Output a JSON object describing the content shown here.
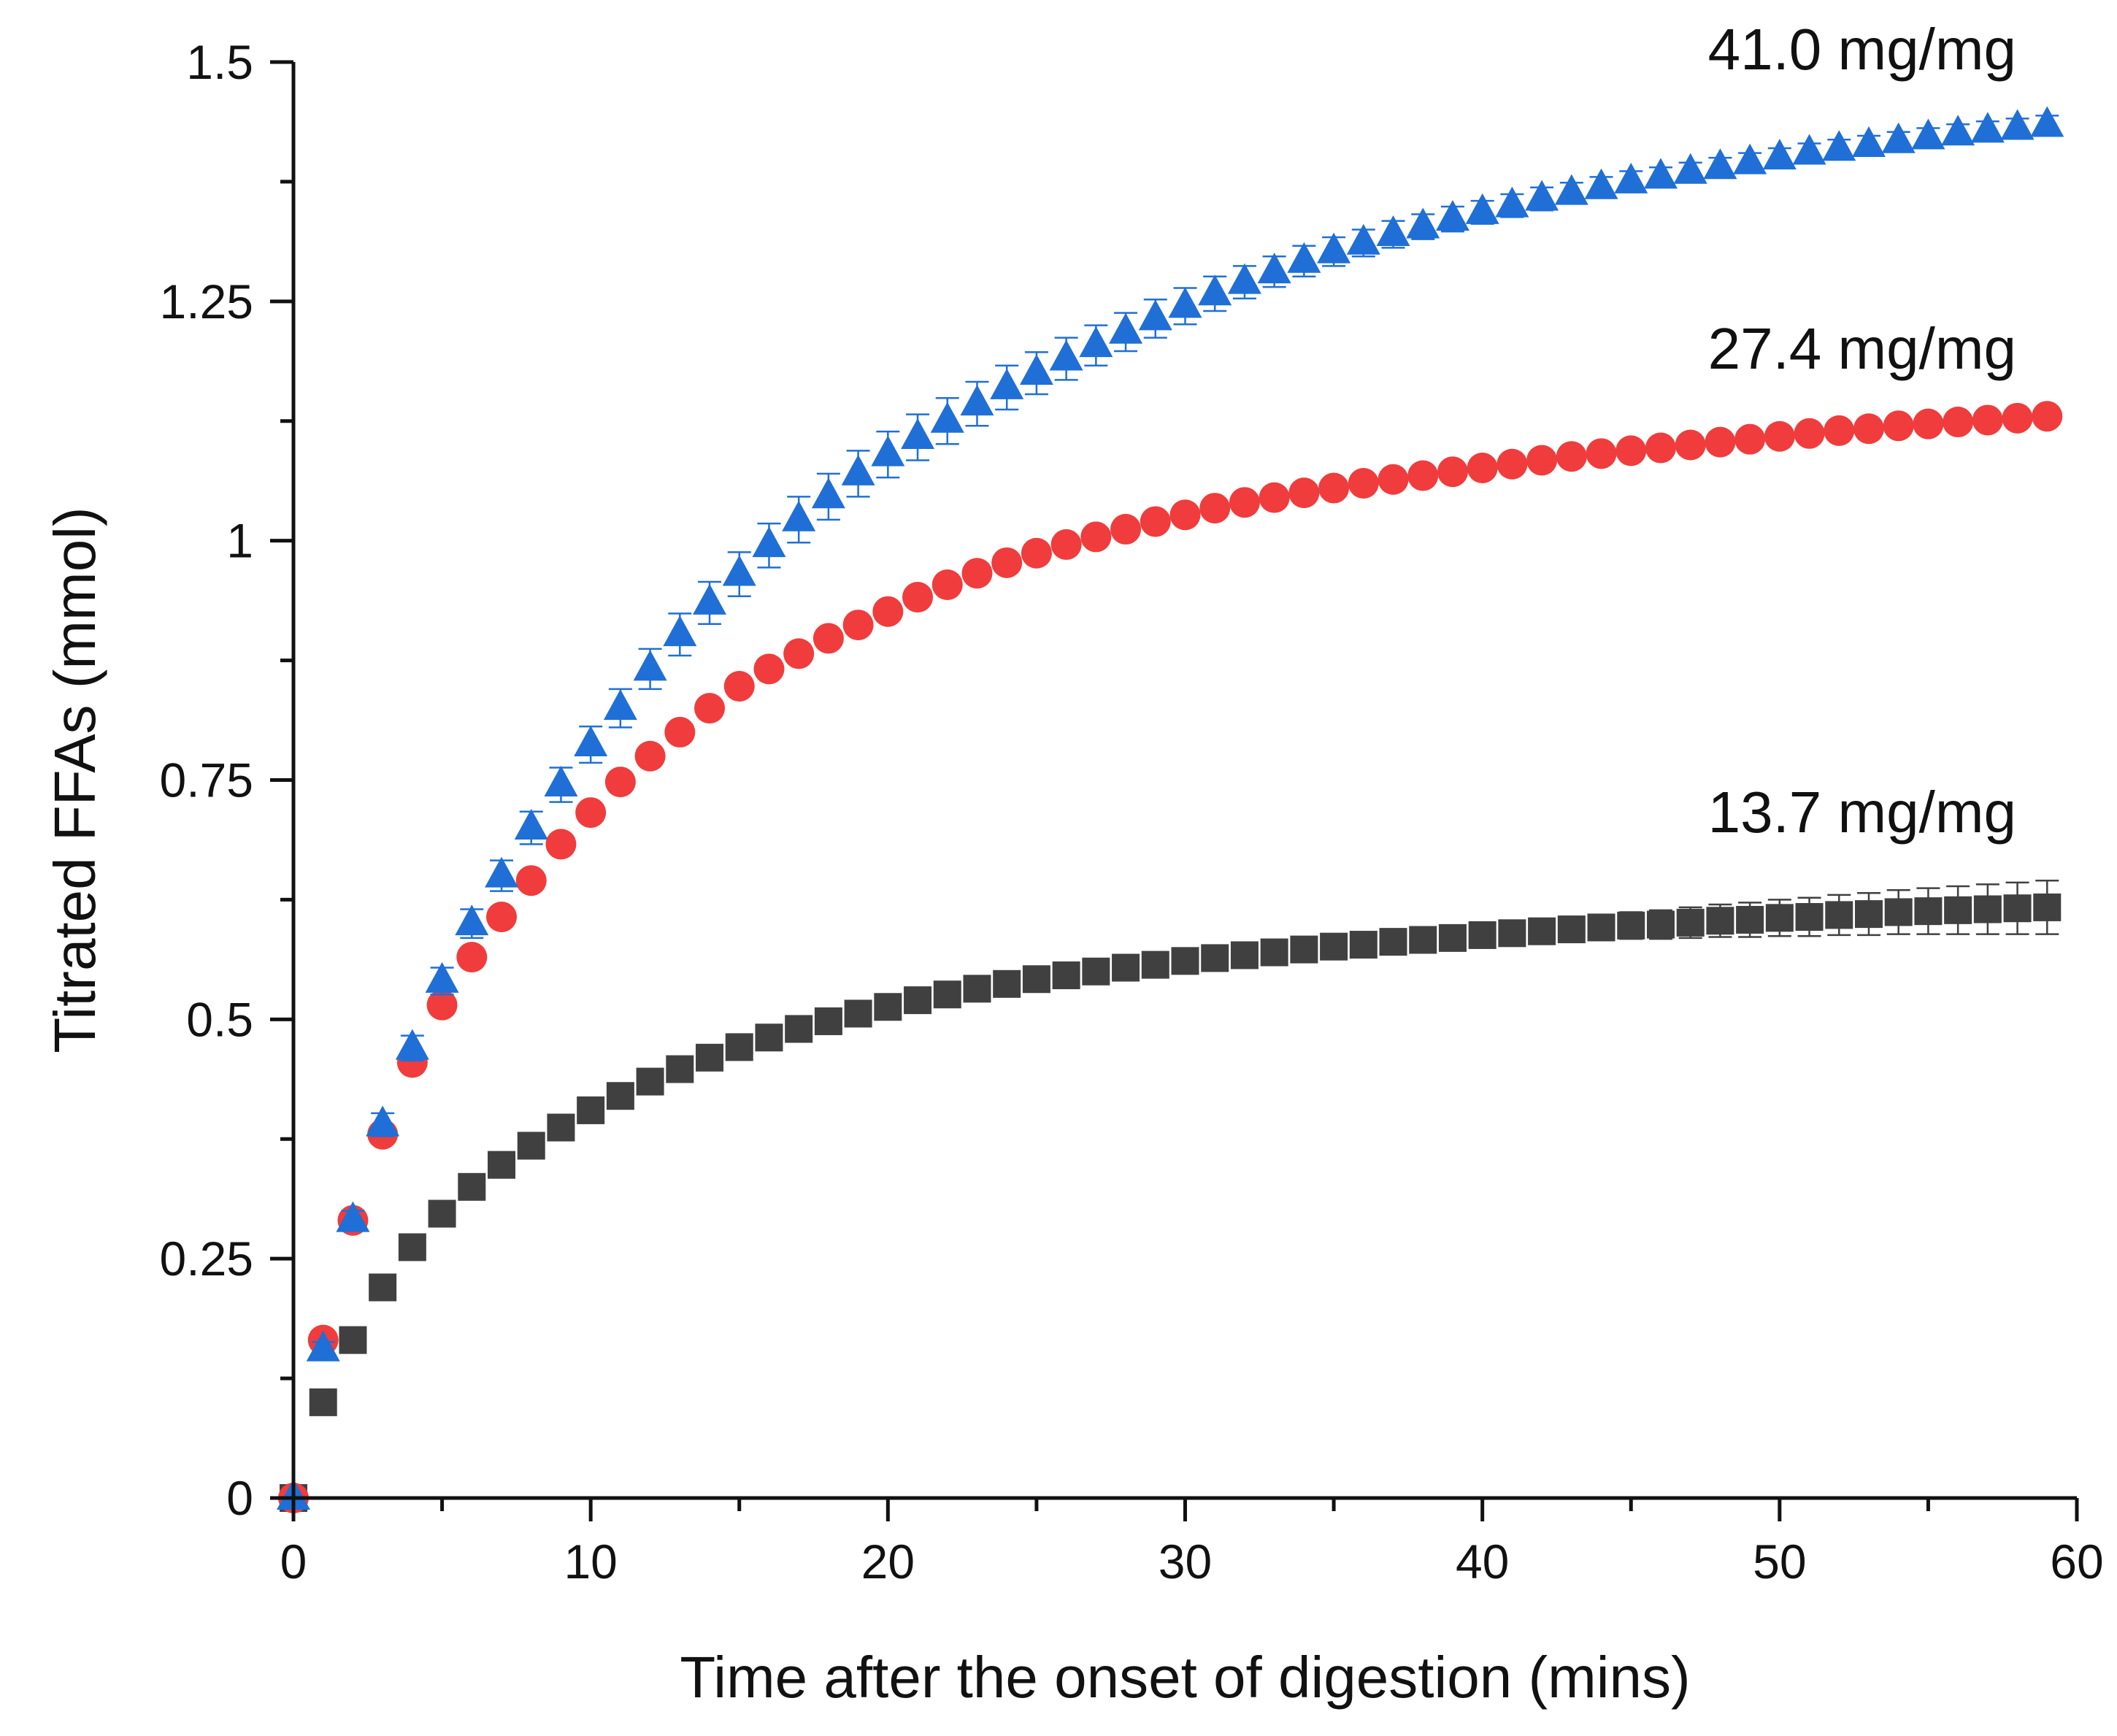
{
  "chart_data": {
    "type": "scatter",
    "title": "",
    "xlabel": "Time after the onset of digestion (mins)",
    "ylabel": "Titrated FFAs (mmol)",
    "xlim": [
      0,
      60
    ],
    "ylim": [
      0,
      1.5
    ],
    "x_ticks": [
      0,
      10,
      20,
      30,
      40,
      50,
      60
    ],
    "x_tick_labels": [
      "0",
      "10",
      "20",
      "30",
      "40",
      "50",
      "60"
    ],
    "y_ticks": [
      0,
      0.25,
      0.5,
      0.75,
      1,
      1.25,
      1.5
    ],
    "y_tick_labels": [
      "0",
      "0.25",
      "0.5",
      "0.75",
      "1",
      "1.25",
      "1.5"
    ],
    "grid": false,
    "legend": "none",
    "annotations": [
      {
        "text": "41.0 mg/mg",
        "series": 2
      },
      {
        "text": "27.4 mg/mg",
        "series": 1
      },
      {
        "text": "13.7 mg/mg",
        "series": 0
      }
    ],
    "x": [
      0,
      1,
      2,
      3,
      4,
      5,
      6,
      7,
      8,
      9,
      10,
      11,
      12,
      13,
      14,
      15,
      16,
      17,
      18,
      19,
      20,
      21,
      22,
      23,
      24,
      25,
      26,
      27,
      28,
      29,
      30,
      31,
      32,
      33,
      34,
      35,
      36,
      37,
      38,
      39,
      40,
      41,
      42,
      43,
      44,
      45,
      46,
      47,
      48,
      49,
      50,
      51,
      52,
      53,
      54,
      55,
      56,
      57,
      58,
      59
    ],
    "series": [
      {
        "marker": "square",
        "color": "#404040",
        "values": [
          0.0,
          0.1,
          0.165,
          0.22,
          0.262,
          0.297,
          0.325,
          0.348,
          0.368,
          0.387,
          0.405,
          0.42,
          0.435,
          0.448,
          0.46,
          0.471,
          0.481,
          0.49,
          0.498,
          0.506,
          0.513,
          0.52,
          0.526,
          0.532,
          0.537,
          0.542,
          0.546,
          0.55,
          0.554,
          0.557,
          0.561,
          0.564,
          0.567,
          0.57,
          0.573,
          0.576,
          0.578,
          0.581,
          0.583,
          0.585,
          0.588,
          0.59,
          0.592,
          0.594,
          0.596,
          0.598,
          0.599,
          0.601,
          0.603,
          0.604,
          0.606,
          0.607,
          0.609,
          0.61,
          0.612,
          0.613,
          0.614,
          0.615,
          0.616,
          0.617
        ],
        "errors": [
          0,
          0,
          0,
          0,
          0,
          0,
          0,
          0,
          0,
          0,
          0,
          0,
          0,
          0,
          0,
          0,
          0,
          0,
          0,
          0,
          0,
          0,
          0,
          0,
          0,
          0,
          0,
          0,
          0,
          0,
          0.002,
          0.003,
          0.004,
          0.004,
          0.005,
          0.006,
          0.006,
          0.007,
          0.008,
          0.008,
          0.009,
          0.01,
          0.011,
          0.012,
          0.013,
          0.014,
          0.015,
          0.016,
          0.017,
          0.018,
          0.019,
          0.02,
          0.021,
          0.022,
          0.023,
          0.024,
          0.025,
          0.026,
          0.027,
          0.028
        ]
      },
      {
        "marker": "circle",
        "color": "#f03c3c",
        "values": [
          0.0,
          0.165,
          0.29,
          0.38,
          0.455,
          0.515,
          0.565,
          0.607,
          0.645,
          0.683,
          0.716,
          0.748,
          0.775,
          0.8,
          0.825,
          0.848,
          0.866,
          0.882,
          0.898,
          0.912,
          0.926,
          0.941,
          0.954,
          0.966,
          0.977,
          0.987,
          0.996,
          1.004,
          1.012,
          1.02,
          1.027,
          1.034,
          1.04,
          1.045,
          1.05,
          1.055,
          1.06,
          1.064,
          1.068,
          1.072,
          1.076,
          1.08,
          1.084,
          1.088,
          1.091,
          1.094,
          1.097,
          1.1,
          1.103,
          1.106,
          1.109,
          1.112,
          1.115,
          1.117,
          1.12,
          1.122,
          1.124,
          1.126,
          1.128,
          1.13
        ],
        "errors": [
          0,
          0.005,
          0.005,
          0.005,
          0.005,
          0.005,
          0.005,
          0.005,
          0.005,
          0.005,
          0.005,
          0.005,
          0.005,
          0.005,
          0.005,
          0.005,
          0.005,
          0.005,
          0.005,
          0.005,
          0.005,
          0.005,
          0.005,
          0.005,
          0.005,
          0.005,
          0.005,
          0.005,
          0.005,
          0.005,
          0.005,
          0.005,
          0.005,
          0.005,
          0.005,
          0.005,
          0.005,
          0.005,
          0.005,
          0.005,
          0.005,
          0.005,
          0.005,
          0.005,
          0.005,
          0.005,
          0.005,
          0.005,
          0.005,
          0.005,
          0.005,
          0.005,
          0.005,
          0.005,
          0.005,
          0.005,
          0.005,
          0.005,
          0.005,
          0.005
        ]
      },
      {
        "marker": "triangle",
        "color": "#1f6fd6",
        "values": [
          0.0,
          0.155,
          0.29,
          0.39,
          0.47,
          0.54,
          0.6,
          0.65,
          0.7,
          0.745,
          0.787,
          0.825,
          0.866,
          0.902,
          0.935,
          0.965,
          0.995,
          1.022,
          1.046,
          1.07,
          1.09,
          1.108,
          1.125,
          1.143,
          1.16,
          1.175,
          1.19,
          1.204,
          1.218,
          1.232,
          1.245,
          1.258,
          1.27,
          1.281,
          1.292,
          1.302,
          1.311,
          1.32,
          1.328,
          1.336,
          1.343,
          1.35,
          1.357,
          1.363,
          1.369,
          1.375,
          1.38,
          1.385,
          1.39,
          1.395,
          1.4,
          1.405,
          1.409,
          1.413,
          1.417,
          1.421,
          1.425,
          1.428,
          1.431,
          1.434
        ],
        "errors": [
          0,
          0.008,
          0.01,
          0.012,
          0.013,
          0.014,
          0.015,
          0.016,
          0.017,
          0.018,
          0.019,
          0.02,
          0.021,
          0.022,
          0.022,
          0.023,
          0.023,
          0.024,
          0.024,
          0.024,
          0.024,
          0.024,
          0.024,
          0.023,
          0.023,
          0.022,
          0.022,
          0.021,
          0.02,
          0.02,
          0.019,
          0.018,
          0.017,
          0.016,
          0.016,
          0.015,
          0.014,
          0.014,
          0.013,
          0.013,
          0.012,
          0.012,
          0.012,
          0.011,
          0.011,
          0.011,
          0.01,
          0.01,
          0.01,
          0.01,
          0.01,
          0.01,
          0.01,
          0.01,
          0.01,
          0.01,
          0.01,
          0.01,
          0.01,
          0.01
        ]
      }
    ]
  }
}
